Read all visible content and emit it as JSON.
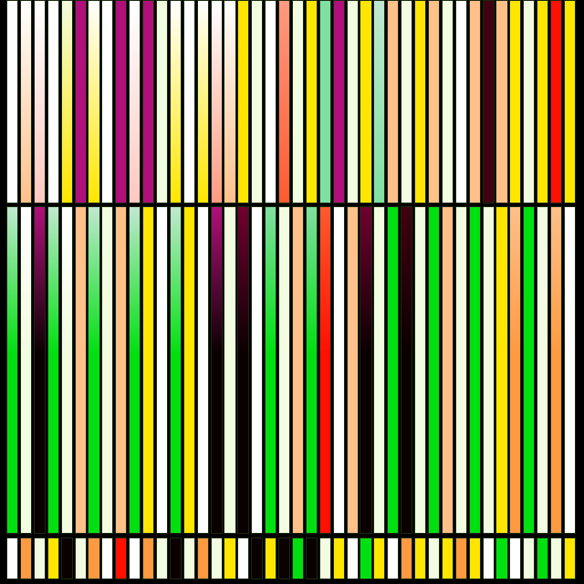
{
  "palette": {
    "white": "#ffffff",
    "ivory": "#f2fce0",
    "peach": "#ffc08a",
    "pink": "#ffc8c0",
    "yellow": "#ffe600",
    "magenta": "#b0107a",
    "salmon": "#ff9a80",
    "redorange": "#ff5a30",
    "lightgreen": "#80e0a0",
    "mint": "#c0e8d0",
    "maroon": "#700030",
    "darkmaroon": "#400010",
    "green": "#00e010",
    "orange": "#ff9a40",
    "red": "#ff1000",
    "black": "#0a0000"
  },
  "background": "#000000",
  "rows": [
    {
      "name": "top",
      "top_colors": [
        "white",
        "white",
        "white",
        "white",
        "ivory",
        "magenta",
        "white",
        "white",
        "magenta",
        "white",
        "magenta",
        "ivory",
        "white",
        "white",
        "white",
        "white",
        "white",
        "yellow",
        "ivory",
        "white",
        "salmon",
        "ivory",
        "yellow",
        "lightgreen",
        "magenta",
        "ivory",
        "yellow",
        "mint",
        "peach",
        "ivory",
        "yellow",
        "peach",
        "ivory",
        "white",
        "peach",
        "darkmaroon",
        "peach",
        "yellow",
        "ivory",
        "yellow",
        "red",
        "yellow"
      ],
      "bottom_colors": [
        "white",
        "peach",
        "pink",
        "white",
        "yellow",
        "magenta",
        "yellow",
        "white",
        "magenta",
        "pink",
        "magenta",
        "ivory",
        "yellow",
        "white",
        "yellow",
        "salmon",
        "peach",
        "yellow",
        "ivory",
        "white",
        "redorange",
        "ivory",
        "yellow",
        "lightgreen",
        "magenta",
        "ivory",
        "yellow",
        "lightgreen",
        "peach",
        "ivory",
        "yellow",
        "peach",
        "ivory",
        "white",
        "peach",
        "darkmaroon",
        "peach",
        "yellow",
        "ivory",
        "yellow",
        "red",
        "yellow"
      ]
    },
    {
      "name": "middle",
      "top_colors": [
        "mint",
        "white",
        "magenta",
        "mint",
        "white",
        "peach",
        "mint",
        "ivory",
        "peach",
        "mint",
        "yellow",
        "white",
        "mint",
        "yellow",
        "white",
        "magenta",
        "ivory",
        "maroon",
        "white",
        "lightgreen",
        "ivory",
        "peach",
        "lightgreen",
        "redorange",
        "white",
        "peach",
        "maroon",
        "ivory",
        "green",
        "darkmaroon",
        "ivory",
        "green",
        "peach",
        "ivory",
        "green",
        "ivory",
        "yellow",
        "peach",
        "green",
        "ivory",
        "peach",
        "white"
      ],
      "bottom_colors": [
        "green",
        "ivory",
        "black",
        "green",
        "ivory",
        "peach",
        "green",
        "ivory",
        "peach",
        "green",
        "yellow",
        "white",
        "green",
        "yellow",
        "white",
        "black",
        "ivory",
        "black",
        "white",
        "green",
        "ivory",
        "peach",
        "green",
        "red",
        "white",
        "peach",
        "black",
        "ivory",
        "green",
        "black",
        "ivory",
        "green",
        "peach",
        "ivory",
        "green",
        "ivory",
        "yellow",
        "orange",
        "green",
        "ivory",
        "orange",
        "white"
      ]
    },
    {
      "name": "bottom",
      "top_colors": [
        "white",
        "orange",
        "ivory",
        "yellow",
        "black",
        "ivory",
        "orange",
        "white",
        "red",
        "white",
        "orange",
        "ivory",
        "black",
        "ivory",
        "orange",
        "ivory",
        "yellow",
        "white",
        "black",
        "yellow",
        "black",
        "green",
        "black",
        "ivory",
        "yellow",
        "white",
        "green",
        "yellow",
        "white",
        "orange",
        "yellow",
        "ivory",
        "yellow",
        "orange",
        "yellow",
        "white",
        "green",
        "white",
        "ivory",
        "green",
        "ivory",
        "yellow"
      ],
      "bottom_colors": [
        "white",
        "orange",
        "ivory",
        "yellow",
        "black",
        "ivory",
        "orange",
        "white",
        "red",
        "white",
        "orange",
        "ivory",
        "black",
        "ivory",
        "orange",
        "ivory",
        "yellow",
        "white",
        "black",
        "yellow",
        "black",
        "green",
        "black",
        "ivory",
        "yellow",
        "white",
        "green",
        "yellow",
        "white",
        "orange",
        "yellow",
        "ivory",
        "yellow",
        "orange",
        "yellow",
        "white",
        "green",
        "white",
        "ivory",
        "green",
        "ivory",
        "yellow"
      ]
    }
  ]
}
